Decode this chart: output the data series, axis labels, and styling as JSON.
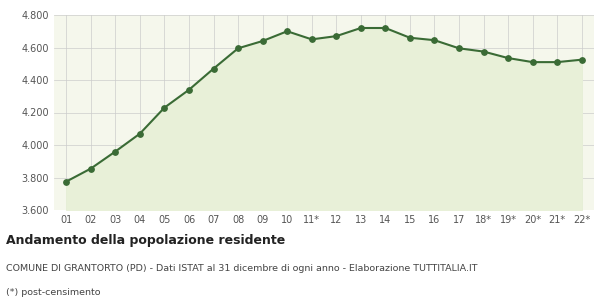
{
  "x_labels": [
    "01",
    "02",
    "03",
    "04",
    "05",
    "06",
    "07",
    "08",
    "09",
    "10",
    "11*",
    "12",
    "13",
    "14",
    "15",
    "16",
    "17",
    "18*",
    "19*",
    "20*",
    "21*",
    "22*"
  ],
  "y_values": [
    3775,
    3855,
    3960,
    4070,
    4230,
    4340,
    4470,
    4595,
    4640,
    4700,
    4650,
    4670,
    4720,
    4720,
    4660,
    4645,
    4595,
    4575,
    4535,
    4510,
    4510,
    4525
  ],
  "line_color": "#3a6b35",
  "fill_color": "#e8f0d8",
  "marker_color": "#3a6b35",
  "bg_color": "#f5f7ec",
  "grid_color": "#cccccc",
  "ylim": [
    3600,
    4800
  ],
  "yticks": [
    3600,
    3800,
    4000,
    4200,
    4400,
    4600,
    4800
  ],
  "title": "Andamento della popolazione residente",
  "subtitle": "COMUNE DI GRANTORTO (PD) - Dati ISTAT al 31 dicembre di ogni anno - Elaborazione TUTTITALIA.IT",
  "footnote": "(*) post-censimento",
  "title_fontsize": 9,
  "subtitle_fontsize": 6.8,
  "footnote_fontsize": 6.8,
  "tick_fontsize": 7,
  "fig_bg": "#ffffff"
}
